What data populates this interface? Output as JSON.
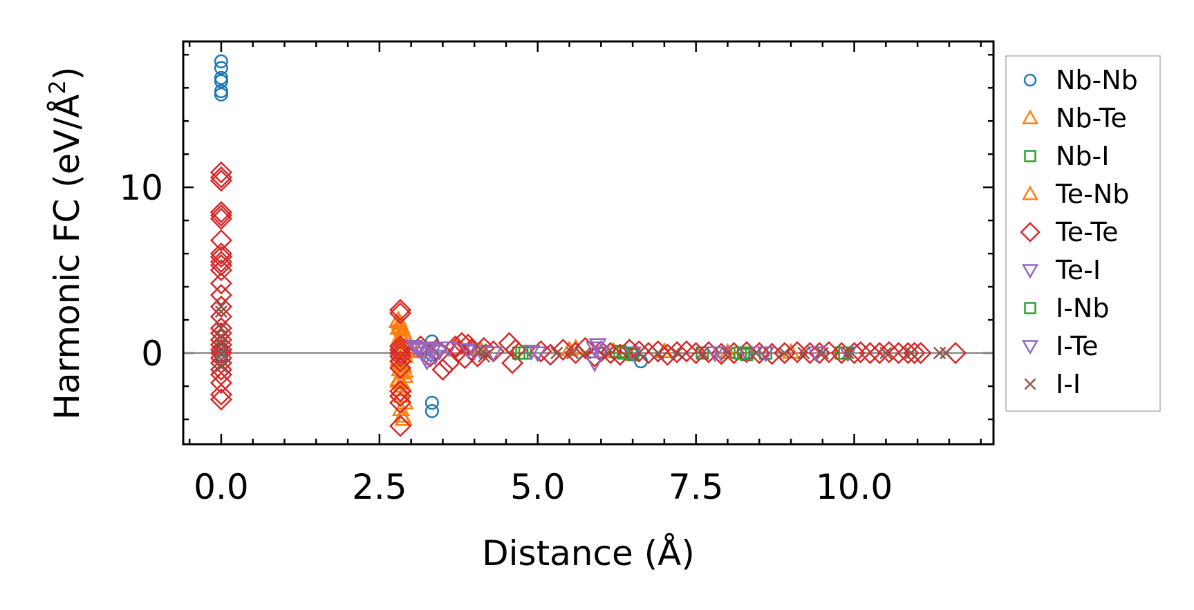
{
  "chart_data": {
    "type": "scatter",
    "xlabel": "Distance (Å)",
    "ylabel_main": "Harmonic FC (eV/Å",
    "ylabel_sup": "2",
    "ylabel_close": ")",
    "xlim": [
      -0.6,
      12.2
    ],
    "ylim": [
      -5.5,
      18.8
    ],
    "xticks": [
      0.0,
      2.5,
      5.0,
      7.5,
      10.0
    ],
    "xtick_labels": [
      "0.0",
      "2.5",
      "5.0",
      "7.5",
      "10.0"
    ],
    "xminor_step": 0.5,
    "yticks": [
      0,
      10
    ],
    "ytick_labels": [
      "0",
      "10"
    ],
    "yminor_step": 2,
    "zero_line": true,
    "legend_position": "outside-right",
    "series": [
      {
        "name": "Nb-Nb",
        "marker": "circle",
        "color": "#1f77b4",
        "x": [
          0,
          0,
          0,
          0,
          0,
          0,
          0,
          0,
          3.33,
          3.33,
          3.33,
          3.33,
          6.63
        ],
        "y": [
          17.6,
          17.2,
          16.6,
          16.4,
          15.8,
          15.6,
          0.2,
          -0.2,
          0.7,
          -0.1,
          -3.0,
          -3.5,
          -0.5
        ]
      },
      {
        "name": "Nb-Te",
        "marker": "triangle-up",
        "color": "#ff7f0e",
        "x": [
          2.8,
          2.82,
          2.84,
          2.86,
          2.88,
          2.9,
          2.8,
          2.82,
          2.84,
          2.86,
          2.88,
          2.9,
          2.8,
          2.84,
          2.88,
          2.82,
          2.86,
          2.9,
          2.8,
          2.84,
          2.88,
          2.82,
          2.86,
          2.9,
          2.84,
          2.86,
          2.88,
          3.72,
          4.1,
          5.5,
          5.6,
          6.2,
          7.0,
          8.0,
          9.0
        ],
        "y": [
          2.0,
          1.8,
          1.6,
          1.4,
          1.2,
          1.0,
          0.8,
          0.6,
          0.4,
          0.2,
          0.0,
          -0.2,
          -0.4,
          -0.6,
          -0.8,
          -1.0,
          -1.2,
          -1.4,
          -1.6,
          -1.8,
          -2.0,
          -2.2,
          -2.6,
          -3.0,
          -3.4,
          -3.8,
          -4.0,
          0.3,
          0.2,
          0.2,
          0.3,
          0.1,
          0.1,
          0.05,
          0.05
        ]
      },
      {
        "name": "Nb-I",
        "marker": "square",
        "color": "#2ca02c",
        "x": [
          4.7,
          4.8,
          6.3,
          6.4,
          6.5,
          7.6,
          8.2,
          8.3,
          8.6,
          9.8
        ],
        "y": [
          0,
          0,
          0.1,
          0,
          -0.1,
          0,
          0,
          -0.1,
          0,
          0
        ]
      },
      {
        "name": "Te-Nb",
        "marker": "triangle-up",
        "color": "#ff7f0e",
        "x": [
          2.78,
          2.8,
          2.84,
          2.88,
          2.92,
          2.84,
          2.9,
          2.8,
          3.0,
          3.1
        ],
        "y": [
          1.9,
          1.5,
          1.1,
          0.7,
          0.3,
          -0.5,
          -1.1,
          -1.7,
          0.2,
          0.1
        ]
      },
      {
        "name": "Te-Te",
        "marker": "diamond",
        "color": "#d62728",
        "x": [
          0,
          0,
          0,
          0,
          0,
          0,
          0,
          0,
          0,
          0,
          0,
          0,
          0,
          0,
          0,
          0,
          0,
          0,
          0,
          0,
          0,
          0,
          0,
          0,
          0,
          0,
          0,
          0,
          0,
          2.83,
          2.83,
          2.83,
          2.83,
          2.83,
          2.83,
          2.83,
          2.83,
          2.83,
          2.83,
          2.83,
          2.83,
          3.15,
          3.3,
          3.4,
          3.5,
          3.6,
          3.7,
          3.75,
          3.8,
          3.85,
          3.9,
          3.95,
          4.05,
          4.15,
          4.3,
          4.55,
          4.6,
          4.65,
          5.05,
          5.2,
          5.4,
          5.6,
          5.75,
          5.9,
          6.0,
          6.15,
          6.3,
          6.45,
          6.6,
          6.75,
          6.9,
          7.05,
          7.2,
          7.35,
          7.5,
          7.7,
          7.9,
          8.1,
          8.3,
          8.5,
          8.7,
          8.9,
          9.1,
          9.3,
          9.45,
          9.6,
          9.8,
          10.0,
          10.1,
          10.25,
          10.4,
          10.55,
          10.7,
          10.85,
          10.95,
          11.05,
          11.6
        ],
        "y": [
          10.9,
          10.6,
          10.4,
          8.5,
          8.3,
          8.1,
          6.8,
          6.0,
          5.8,
          5.5,
          5.3,
          5.0,
          4.2,
          3.5,
          2.8,
          2.2,
          1.5,
          1.2,
          0.8,
          0.5,
          0.2,
          0,
          -0.3,
          -0.6,
          -1.0,
          -1.3,
          -1.8,
          -2.5,
          -2.8,
          2.6,
          2.4,
          0.4,
          0.2,
          0,
          -0.2,
          -0.5,
          -0.9,
          -2.3,
          -2.6,
          -3.0,
          -4.4,
          0.4,
          -0.2,
          0.2,
          -1.0,
          -0.6,
          0.4,
          0.1,
          0.6,
          -0.3,
          0.5,
          0.2,
          -0.2,
          0.3,
          0.1,
          0.6,
          -0.6,
          0.2,
          0.1,
          -0.1,
          0.2,
          0,
          0.3,
          -0.2,
          0.1,
          0,
          -0.1,
          0.2,
          0.1,
          0,
          0.1,
          -0.1,
          0.05,
          0.1,
          0,
          0.05,
          -0.05,
          0,
          0.05,
          0,
          -0.05,
          0,
          0.05,
          0,
          0,
          0.05,
          0,
          0,
          0.05,
          0,
          0,
          0.05,
          0,
          0,
          0,
          0,
          0
        ]
      },
      {
        "name": "Te-I",
        "marker": "triangle-down",
        "color": "#9467bd",
        "x": [
          3.05,
          3.12,
          3.2,
          3.25,
          3.3,
          3.38,
          3.45,
          3.6,
          3.9,
          4.1,
          4.3,
          4.9,
          5.95,
          5.9,
          6.0,
          6.5,
          7.9,
          8.3,
          9.4,
          9.9
        ],
        "y": [
          0.4,
          0.2,
          0,
          -0.5,
          0.3,
          -0.2,
          0.1,
          0.3,
          0.2,
          0.1,
          0,
          0.1,
          0.5,
          -0.6,
          0,
          0,
          0,
          0,
          0,
          0
        ]
      },
      {
        "name": "I-Nb",
        "marker": "square",
        "color": "#2ca02c",
        "x": [
          4.75,
          6.35,
          8.25,
          9.85
        ],
        "y": [
          0,
          0,
          0,
          0
        ]
      },
      {
        "name": "I-Te",
        "marker": "triangle-down",
        "color": "#9467bd",
        "x": [
          3.1,
          3.22,
          3.35,
          4.0,
          5.0,
          5.9,
          7.8,
          8.6
        ],
        "y": [
          0.3,
          -0.3,
          0.2,
          0.1,
          0,
          0.3,
          0,
          0
        ]
      },
      {
        "name": "I-I",
        "marker": "cross",
        "color": "#8c564b",
        "x": [
          0,
          0,
          0,
          0,
          0,
          0,
          0,
          0,
          4.1,
          4.15,
          5.3,
          5.55,
          5.75,
          6.1,
          6.6,
          6.9,
          7.2,
          7.6,
          8.0,
          8.45,
          8.9,
          9.2,
          9.5,
          9.9,
          10.5,
          10.9,
          11.35,
          11.45
        ],
        "y": [
          2.8,
          2.5,
          1.5,
          1.0,
          0.5,
          0,
          -0.4,
          -0.8,
          0.2,
          -0.2,
          0,
          0,
          0,
          0,
          0,
          0,
          0,
          0,
          0,
          0,
          0,
          0,
          0,
          0,
          0,
          0,
          0,
          0
        ]
      }
    ]
  }
}
